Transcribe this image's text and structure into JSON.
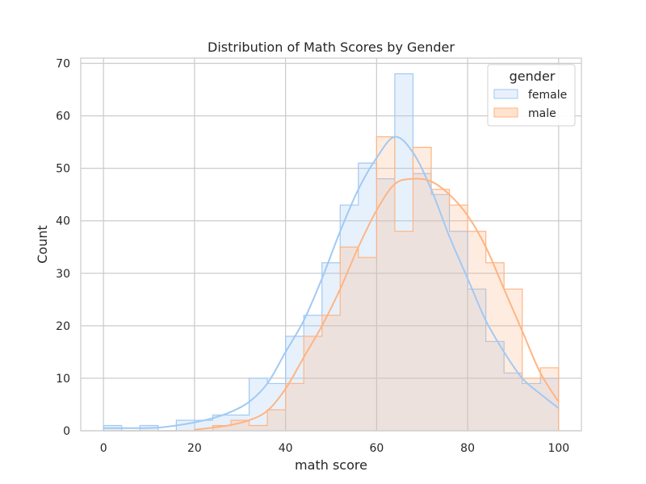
{
  "chart_data": {
    "type": "histogram",
    "title": "Distribution of Math Scores by Gender",
    "xlabel": "math score",
    "ylabel": "Count",
    "xlim": [
      -5,
      105
    ],
    "ylim": [
      0,
      71
    ],
    "xticks": [
      0,
      20,
      40,
      60,
      80,
      100
    ],
    "yticks": [
      0,
      10,
      20,
      30,
      40,
      50,
      60,
      70
    ],
    "grid": true,
    "legend_title": "gender",
    "legend_position": "top-right",
    "bin_edges": [
      0,
      4,
      8,
      12,
      16,
      20,
      24,
      28,
      32,
      36,
      40,
      44,
      48,
      52,
      56,
      60,
      64,
      68,
      72,
      76,
      80,
      84,
      88,
      92,
      96,
      100
    ],
    "series": [
      {
        "name": "female",
        "color": "#a1c9f4",
        "fill": "#e8f1fb",
        "counts": [
          1,
          0,
          1,
          0,
          2,
          2,
          3,
          3,
          10,
          9,
          18,
          22,
          32,
          43,
          51,
          48,
          68,
          49,
          45,
          38,
          27,
          17,
          11,
          9,
          10
        ],
        "kde": [
          [
            0,
            0.5
          ],
          [
            4,
            0.5
          ],
          [
            8,
            0.5
          ],
          [
            12,
            0.6
          ],
          [
            16,
            1.0
          ],
          [
            20,
            1.6
          ],
          [
            24,
            2.4
          ],
          [
            28,
            3.6
          ],
          [
            32,
            5.5
          ],
          [
            36,
            9
          ],
          [
            40,
            15
          ],
          [
            44,
            21
          ],
          [
            48,
            29
          ],
          [
            52,
            38
          ],
          [
            56,
            46
          ],
          [
            60,
            52
          ],
          [
            64,
            56
          ],
          [
            68,
            53
          ],
          [
            72,
            46
          ],
          [
            76,
            37
          ],
          [
            80,
            29
          ],
          [
            84,
            21
          ],
          [
            88,
            15
          ],
          [
            92,
            10
          ],
          [
            96,
            7
          ],
          [
            100,
            4.3
          ]
        ]
      },
      {
        "name": "male",
        "color": "#ffb482",
        "fill": "#fde3d0",
        "counts": [
          0,
          0,
          0,
          0,
          0,
          0,
          1,
          2,
          1,
          4,
          9,
          18,
          22,
          35,
          33,
          56,
          38,
          54,
          46,
          43,
          38,
          32,
          27,
          10,
          12
        ],
        "kde": [
          [
            20,
            0.2
          ],
          [
            24,
            0.6
          ],
          [
            28,
            1.1
          ],
          [
            32,
            2.0
          ],
          [
            36,
            3.8
          ],
          [
            40,
            8
          ],
          [
            44,
            14
          ],
          [
            48,
            20
          ],
          [
            52,
            27
          ],
          [
            56,
            35
          ],
          [
            60,
            42
          ],
          [
            64,
            47
          ],
          [
            68,
            48
          ],
          [
            72,
            47.5
          ],
          [
            76,
            45
          ],
          [
            80,
            41
          ],
          [
            84,
            35
          ],
          [
            88,
            27
          ],
          [
            92,
            19
          ],
          [
            96,
            11
          ],
          [
            100,
            5.5
          ]
        ]
      }
    ]
  }
}
